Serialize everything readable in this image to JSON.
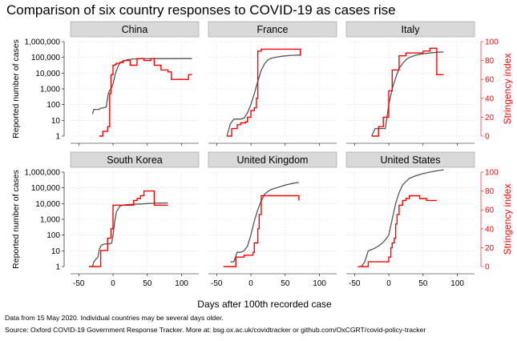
{
  "title": "Comparison of six country responses to COVID-19 as cases rise",
  "notes": [
    "Data from 15 May 2020. Individual countries may be several days older.",
    "Source: Oxford COVID-19 Government Response Tracker. More at: bsg.ox.ac.uk/covidtracker or github.com/OxCGRT/covid-policy-tracker"
  ],
  "colors": {
    "cases": "#555555",
    "stringency": "#ff0000",
    "panel_header": "#d9d9d9",
    "grid": "#dcdcdc"
  },
  "chart_data": {
    "type": "line",
    "title": "Comparison of six country responses to COVID-19 as cases rise",
    "xlabel": "Days after 100th recorded case",
    "ylabel_left": "Reported number of cases",
    "ylabel_right": "Stringency index",
    "x_ticks": [
      -50,
      0,
      50,
      100
    ],
    "xlim": [
      -62,
      125
    ],
    "y_left_scale": "log",
    "y_left_ticks": [
      "1",
      "10",
      "100",
      "1,000",
      "10,000",
      "100,000",
      "1,000,000"
    ],
    "y_left_range": [
      1,
      1000000
    ],
    "y_right_ticks": [
      0,
      20,
      40,
      60,
      80,
      100
    ],
    "y_right_range": [
      0,
      100
    ],
    "grid": true,
    "legend": "none",
    "panels": [
      {
        "name": "China",
        "series": [
          {
            "variable": "cases",
            "axis": "left",
            "x": [
              -30,
              -28,
              -25,
              -20,
              -18,
              -15,
              -10,
              -7,
              -5,
              -3,
              0,
              3,
              5,
              8,
              10,
              15,
              20,
              25,
              30,
              40,
              50,
              60,
              80,
              100,
              115
            ],
            "y": [
              25,
              50,
              50,
              50,
              60,
              60,
              70,
              500,
              800,
              1000,
              2000,
              8000,
              15000,
              30000,
              45000,
              60000,
              70000,
              75000,
              80000,
              81000,
              82000,
              82500,
              83000,
              83500,
              84000
            ]
          },
          {
            "variable": "stringency",
            "axis": "right",
            "x": [
              -20,
              -18,
              -15,
              -12,
              -10,
              -8,
              -5,
              -3,
              0,
              3,
              5,
              8,
              10,
              15,
              20,
              25,
              30,
              35,
              40,
              45,
              50,
              55,
              60,
              65,
              70,
              75,
              80,
              85,
              90,
              95,
              100,
              105,
              110,
              115
            ],
            "y": [
              0,
              0,
              5,
              5,
              5,
              10,
              45,
              65,
              75,
              76,
              77,
              77,
              78,
              80,
              80,
              75,
              75,
              82,
              82,
              80,
              80,
              82,
              75,
              75,
              70,
              70,
              68,
              60,
              60,
              60,
              60,
              60,
              65,
              65
            ]
          }
        ]
      },
      {
        "name": "France",
        "series": [
          {
            "variable": "cases",
            "axis": "left",
            "x": [
              -35,
              -30,
              -25,
              -20,
              -15,
              -10,
              -5,
              0,
              5,
              10,
              15,
              20,
              25,
              30,
              40,
              50,
              60,
              70,
              72
            ],
            "y": [
              1,
              6,
              12,
              12,
              12,
              14,
              30,
              100,
              500,
              3000,
              15000,
              40000,
              70000,
              90000,
              110000,
              125000,
              135000,
              140000,
              140000
            ]
          },
          {
            "variable": "stringency",
            "axis": "right",
            "x": [
              -35,
              -30,
              -28,
              -25,
              -20,
              -18,
              -15,
              -10,
              -8,
              -5,
              0,
              3,
              5,
              8,
              10,
              12,
              15,
              70,
              72
            ],
            "y": [
              0,
              0,
              8,
              8,
              12,
              12,
              14,
              14,
              15,
              20,
              27,
              27,
              30,
              40,
              90,
              90,
              92,
              92,
              85
            ]
          }
        ]
      },
      {
        "name": "Italy",
        "series": [
          {
            "variable": "cases",
            "axis": "left",
            "x": [
              -25,
              -20,
              -15,
              -10,
              -5,
              0,
              5,
              10,
              15,
              20,
              25,
              30,
              40,
              50,
              60,
              70,
              80
            ],
            "y": [
              1,
              3,
              3,
              3,
              3,
              100,
              1000,
              5000,
              20000,
              40000,
              70000,
              100000,
              140000,
              170000,
              190000,
              210000,
              220000
            ]
          },
          {
            "variable": "stringency",
            "axis": "right",
            "x": [
              -25,
              -20,
              -15,
              -12,
              -10,
              -8,
              -5,
              -3,
              0,
              3,
              5,
              10,
              15,
              20,
              25,
              30,
              35,
              40,
              50,
              55,
              60,
              65,
              70,
              72,
              80
            ],
            "y": [
              0,
              0,
              10,
              10,
              10,
              20,
              20,
              20,
              48,
              48,
              70,
              70,
              85,
              85,
              88,
              88,
              88,
              88,
              90,
              90,
              93,
              93,
              65,
              65,
              65
            ]
          }
        ]
      },
      {
        "name": "South Korea",
        "series": [
          {
            "variable": "cases",
            "axis": "left",
            "x": [
              -35,
              -30,
              -28,
              -25,
              -22,
              -20,
              -18,
              -15,
              -10,
              -5,
              -2,
              0,
              3,
              5,
              10,
              15,
              20,
              30,
              40,
              50,
              60,
              70,
              80
            ],
            "y": [
              1,
              1,
              2,
              3,
              4,
              12,
              20,
              25,
              28,
              28,
              30,
              100,
              1000,
              3000,
              7000,
              8000,
              8500,
              9000,
              9500,
              10000,
              10500,
              10800,
              11000
            ]
          },
          {
            "variable": "stringency",
            "axis": "right",
            "x": [
              -35,
              -20,
              -18,
              -15,
              -10,
              -8,
              -5,
              -3,
              0,
              5,
              10,
              15,
              20,
              25,
              30,
              35,
              40,
              45,
              50,
              55,
              58,
              60,
              65,
              70,
              80
            ],
            "y": [
              0,
              0,
              17,
              17,
              17,
              30,
              30,
              40,
              65,
              65,
              65,
              65,
              65,
              65,
              70,
              72,
              75,
              80,
              80,
              80,
              80,
              65,
              65,
              65,
              65
            ]
          }
        ]
      },
      {
        "name": "United Kingdom",
        "series": [
          {
            "variable": "cases",
            "axis": "left",
            "x": [
              -30,
              -25,
              -20,
              -15,
              -12,
              -10,
              -5,
              0,
              5,
              10,
              15,
              20,
              25,
              30,
              40,
              50,
              60,
              70
            ],
            "y": [
              2,
              2,
              8,
              8,
              9,
              10,
              20,
              100,
              800,
              4000,
              15000,
              40000,
              60000,
              80000,
              110000,
              150000,
              190000,
              220000
            ]
          },
          {
            "variable": "stringency",
            "axis": "right",
            "x": [
              -40,
              -25,
              -22,
              -20,
              -15,
              -12,
              -10,
              -5,
              0,
              3,
              5,
              8,
              10,
              12,
              15,
              20,
              25,
              30,
              40,
              50,
              60,
              68,
              70
            ],
            "y": [
              0,
              0,
              10,
              10,
              10,
              10,
              12,
              12,
              12,
              15,
              25,
              25,
              40,
              55,
              75,
              75,
              75,
              75,
              75,
              75,
              75,
              75,
              70
            ]
          }
        ]
      },
      {
        "name": "United States",
        "series": [
          {
            "variable": "cases",
            "axis": "left",
            "x": [
              -40,
              -35,
              -30,
              -25,
              -20,
              -15,
              -10,
              -5,
              0,
              5,
              10,
              15,
              20,
              25,
              30,
              40,
              50,
              60,
              70,
              80
            ],
            "y": [
              1,
              2,
              10,
              12,
              15,
              20,
              30,
              50,
              100,
              1000,
              10000,
              50000,
              150000,
              250000,
              400000,
              600000,
              800000,
              1000000,
              1200000,
              1400000
            ]
          },
          {
            "variable": "stringency",
            "axis": "right",
            "x": [
              -45,
              -40,
              -35,
              -30,
              -25,
              -20,
              -15,
              -10,
              -5,
              0,
              3,
              5,
              8,
              10,
              12,
              15,
              20,
              25,
              30,
              40,
              45,
              50,
              55,
              60,
              70
            ],
            "y": [
              0,
              0,
              0,
              5,
              5,
              5,
              5,
              5,
              5,
              10,
              20,
              25,
              30,
              45,
              55,
              65,
              70,
              72,
              75,
              75,
              72,
              72,
              70,
              70,
              70
            ]
          }
        ]
      }
    ]
  }
}
